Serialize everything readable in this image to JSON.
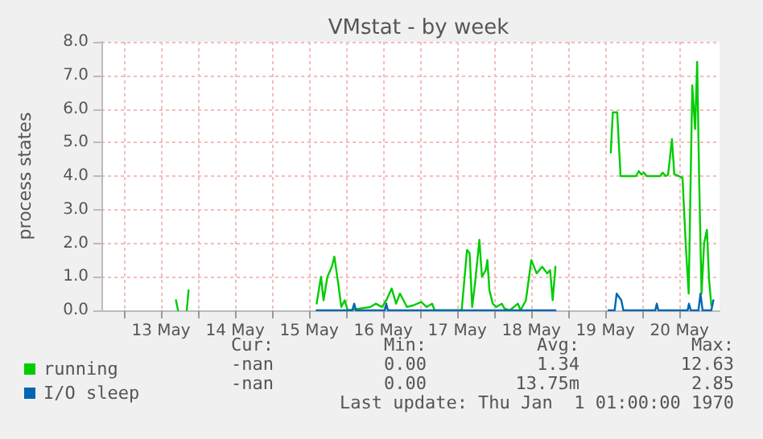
{
  "chart_data": {
    "type": "line",
    "title": "VMstat - by week",
    "ylabel": "process states",
    "xlim": [
      "--05-12T16:40",
      "--05-21T01:00"
    ],
    "xticks": [
      {
        "value": "--05-13T00:00",
        "label": null
      },
      {
        "value": "--05-13T12:00",
        "label": "13 May"
      },
      {
        "value": "--05-14T00:00",
        "label": null
      },
      {
        "value": "--05-14T12:00",
        "label": "14 May"
      },
      {
        "value": "--05-15T00:00",
        "label": null
      },
      {
        "value": "--05-15T12:00",
        "label": "15 May"
      },
      {
        "value": "--05-16T00:00",
        "label": null
      },
      {
        "value": "--05-16T12:00",
        "label": "16 May"
      },
      {
        "value": "--05-17T00:00",
        "label": null
      },
      {
        "value": "--05-17T12:00",
        "label": "17 May"
      },
      {
        "value": "--05-18T00:00",
        "label": null
      },
      {
        "value": "--05-18T12:00",
        "label": "18 May"
      },
      {
        "value": "--05-19T00:00",
        "label": null
      },
      {
        "value": "--05-19T12:00",
        "label": "19 May"
      },
      {
        "value": "--05-20T00:00",
        "label": null
      },
      {
        "value": "--05-20T12:00",
        "label": "20 May"
      }
    ],
    "ylim": [
      0,
      8
    ],
    "yticks": [
      {
        "value": 0,
        "label": "0.0"
      },
      {
        "value": 1,
        "label": "1.0"
      },
      {
        "value": 2,
        "label": "2.0"
      },
      {
        "value": 3,
        "label": "3.0"
      },
      {
        "value": 4,
        "label": "4.0"
      },
      {
        "value": 5,
        "label": "5.0"
      },
      {
        "value": 6,
        "label": "6.0"
      },
      {
        "value": 7,
        "label": "7.0"
      },
      {
        "value": 8,
        "label": "8.0"
      }
    ],
    "grid": true,
    "legend": "bottom left",
    "marker": "none",
    "line_style": "solid",
    "series": [
      {
        "name": "running",
        "color": "#00cc00",
        "x": [
          "--05-13T16:50",
          "--05-13T17:30",
          "--05-13T19:00",
          "--05-13T20:20",
          "--05-13T20:55",
          "--05-15T00:00",
          "--05-15T14:25",
          "--05-15T15:50",
          "--05-15T16:40",
          "--05-15T17:55",
          "--05-15T19:20",
          "--05-15T20:10",
          "--05-15T21:25",
          "--05-15T22:25",
          "--05-15T23:30",
          "--05-16T00:30",
          "--05-16T07:50",
          "--05-16T09:35",
          "--05-16T11:35",
          "--05-16T13:00",
          "--05-16T14:45",
          "--05-16T16:10",
          "--05-16T17:25",
          "--05-16T18:35",
          "--05-16T19:40",
          "--05-16T21:45",
          "--05-17T00:20",
          "--05-17T02:05",
          "--05-17T03:50",
          "--05-17T04:40",
          "--05-17T13:25",
          "--05-17T15:10",
          "--05-17T16:00",
          "--05-17T16:50",
          "--05-17T17:45",
          "--05-17T19:10",
          "--05-17T20:00",
          "--05-17T21:15",
          "--05-17T21:45",
          "--05-17T22:25",
          "--05-17T23:30",
          "--05-18T00:40",
          "--05-18T02:25",
          "--05-18T03:20",
          "--05-18T05:00",
          "--05-18T07:40",
          "--05-18T08:30",
          "--05-18T10:15",
          "--05-18T12:00",
          "--05-18T13:45",
          "--05-18T15:30",
          "--05-18T17:10",
          "--05-18T18:05",
          "--05-18T18:55",
          "--05-18T19:50",
          "--05-19T00:00",
          "--05-19T13:45",
          "--05-19T14:25",
          "--05-19T15:50",
          "--05-19T16:55",
          "--05-19T21:55",
          "--05-19T22:50",
          "--05-19T23:40",
          "--05-20T00:30",
          "--05-20T01:25",
          "--05-20T05:45",
          "--05-20T06:35",
          "--05-20T07:30",
          "--05-20T08:20",
          "--05-20T09:35",
          "--05-20T10:20",
          "--05-20T11:50",
          "--05-20T13:00",
          "--05-20T14:05",
          "--05-20T15:00",
          "--05-20T16:10",
          "--05-20T17:05",
          "--05-20T17:45",
          "--05-20T18:25",
          "--05-20T19:10",
          "--05-20T20:00",
          "--05-20T20:55",
          "--05-20T21:35",
          "--05-20T22:20"
        ],
        "values": [
          0.3,
          0,
          null,
          0,
          0.6,
          null,
          0.2,
          1.0,
          0.3,
          1.0,
          1.3,
          1.6,
          0.8,
          0.1,
          0.3,
          0,
          0.1,
          0.2,
          0.1,
          0.3,
          0.65,
          0.2,
          0.5,
          0.3,
          0.1,
          0.15,
          0.25,
          0.1,
          0.2,
          0,
          0,
          1.8,
          1.7,
          0.1,
          0.8,
          2.1,
          1.0,
          1.2,
          1.5,
          0.6,
          0.2,
          0.1,
          0.2,
          0.05,
          0,
          0.2,
          0,
          0.3,
          1.5,
          1.1,
          1.3,
          1.1,
          1.2,
          0.3,
          1.3,
          null,
          4.7,
          5.9,
          5.9,
          4.0,
          4.0,
          4.15,
          4.05,
          4.1,
          4.0,
          4.0,
          4.1,
          4.0,
          4.05,
          5.1,
          4.05,
          4.0,
          3.95,
          1.9,
          0.5,
          6.7,
          5.4,
          7.4,
          3.8,
          0.5,
          2.0,
          2.4,
          0.95,
          0.15
        ]
      },
      {
        "name": "I/O sleep",
        "color": "#0066b3",
        "x": [
          "--05-15T14:25",
          "--05-16T02:00",
          "--05-16T02:35",
          "--05-16T03:10",
          "--05-16T12:30",
          "--05-16T13:00",
          "--05-16T13:30",
          "--05-18T19:50",
          "--05-19T00:00",
          "--05-19T13:00",
          "--05-19T15:00",
          "--05-19T15:40",
          "--05-19T17:10",
          "--05-19T17:50",
          "--05-20T04:10",
          "--05-20T04:40",
          "--05-20T05:10",
          "--05-20T14:40",
          "--05-20T15:05",
          "--05-20T15:40",
          "--05-20T18:10",
          "--05-20T18:50",
          "--05-20T19:30",
          "--05-20T22:20",
          "--05-20T23:00"
        ],
        "values": [
          0,
          0,
          0.2,
          0,
          0,
          0.2,
          0,
          0,
          null,
          0,
          0,
          0.5,
          0.3,
          0,
          0,
          0.2,
          0,
          0,
          0.2,
          0,
          0,
          0.5,
          0,
          0,
          0.3
        ]
      }
    ],
    "annotations": [
      "Cur:",
      "Min:",
      "Avg:",
      "Max:",
      "-nan",
      "0.00",
      "1.34",
      "12.63",
      "-nan",
      "0.00",
      "13.75m",
      "2.85",
      "Last update: Thu Jan  1 01:00:00 1970"
    ]
  }
}
